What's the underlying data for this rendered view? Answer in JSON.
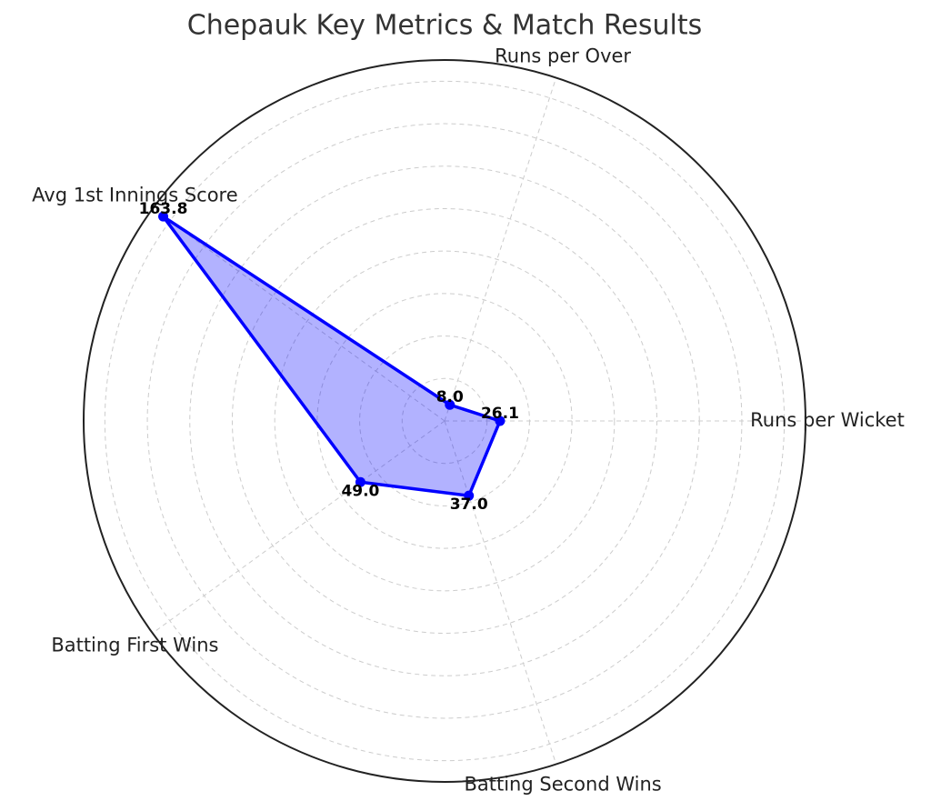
{
  "chart_data": {
    "type": "radar",
    "title": "Chepauk Key Metrics & Match Results",
    "categories": [
      "Runs per Wicket",
      "Runs per Over",
      "Avg 1st Innings Score",
      "Batting First Wins",
      "Batting Second Wins"
    ],
    "series": [
      {
        "color": "#0000ff",
        "values": [
          26.1,
          8.0,
          163.8,
          49.0,
          37.0
        ],
        "value_labels": [
          "26.1",
          "8.0",
          "163.8",
          "49.0",
          "37.0"
        ]
      }
    ],
    "ylim": [
      0,
      170
    ],
    "yticks": [
      20,
      40,
      60,
      80,
      100,
      120,
      140,
      160
    ],
    "grid": true
  }
}
